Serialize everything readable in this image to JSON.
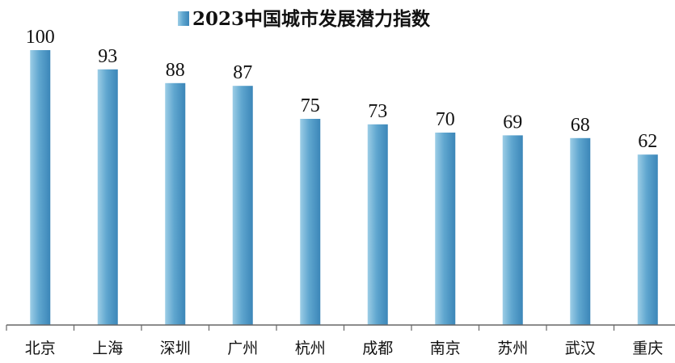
{
  "chart_data": {
    "type": "bar",
    "title": "",
    "legend": {
      "position": "top-center",
      "entries": [
        "2023中国城市发展潜力指数"
      ]
    },
    "series": [
      {
        "name": "2023中国城市发展潜力指数",
        "values": [
          100,
          93,
          88,
          87,
          75,
          73,
          70,
          69,
          68,
          62
        ]
      }
    ],
    "categories": [
      "北京",
      "上海",
      "深圳",
      "广州",
      "杭州",
      "成都",
      "南京",
      "苏州",
      "武汉",
      "重庆"
    ],
    "ylim": [
      0,
      100
    ],
    "grid": false,
    "data_labels": true,
    "xlabel": "",
    "ylabel": "",
    "colors": {
      "bar_light": "#9ccde6",
      "bar_mid": "#5fa6cf",
      "bar_dark": "#3b86b8",
      "axis": "#666666",
      "text": "#111111"
    }
  }
}
